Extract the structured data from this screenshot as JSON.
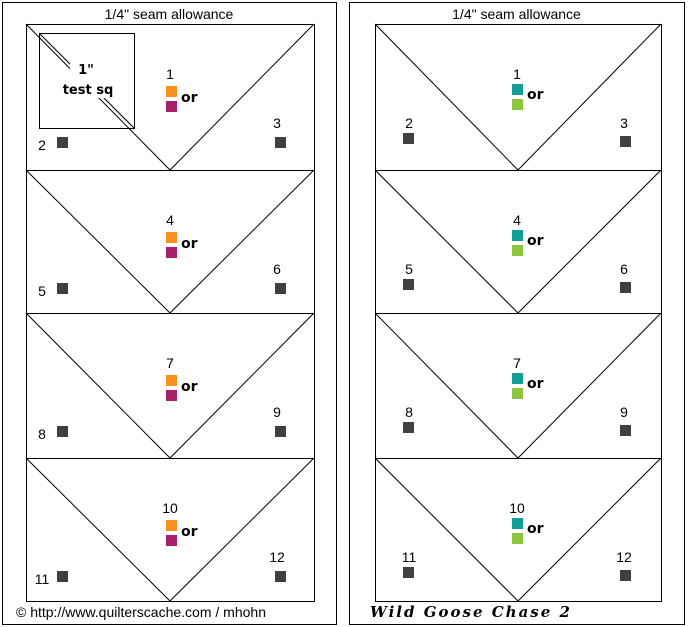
{
  "seam_label": "1/4\" seam allowance",
  "test_square": {
    "line1": "1\"",
    "line2": "test sq"
  },
  "or_label": "or",
  "copyright": "© http://www.quilterscache.com / mhohn",
  "pattern_name": "Wild Goose Chase 2",
  "colors": {
    "left_a": "#f7901e",
    "left_b": "#a6206a",
    "right_a": "#139e96",
    "right_b": "#8cc63f",
    "marker": "#404040",
    "line": "#000000"
  },
  "panels": [
    {
      "name": "left-panel",
      "swatch_colors": [
        "left_a",
        "left_b"
      ],
      "blocks": [
        {
          "center": "1",
          "left": "2",
          "right": "3"
        },
        {
          "center": "4",
          "left": "5",
          "right": "6"
        },
        {
          "center": "7",
          "left": "8",
          "right": "9"
        },
        {
          "center": "10",
          "left": "11",
          "right": "12"
        }
      ]
    },
    {
      "name": "right-panel",
      "swatch_colors": [
        "right_a",
        "right_b"
      ],
      "blocks": [
        {
          "center": "1",
          "left": "2",
          "right": "3"
        },
        {
          "center": "4",
          "left": "5",
          "right": "6"
        },
        {
          "center": "7",
          "left": "8",
          "right": "9"
        },
        {
          "center": "10",
          "left": "11",
          "right": "12"
        }
      ]
    }
  ]
}
